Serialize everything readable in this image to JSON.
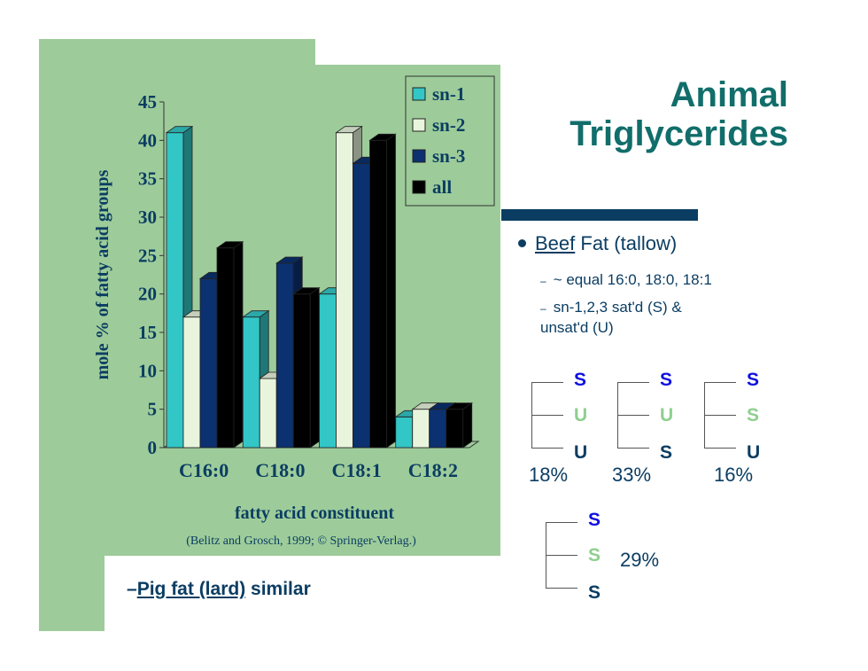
{
  "slide": {
    "title_line1": "Animal",
    "title_line2": "Triglycerides",
    "bullet_underlined": "Beef",
    "bullet_rest": " Fat (tallow)",
    "sub1": "~ equal 16:0, 18:0, 18:1",
    "sub2_line1": "sn-1,2,3 sat'd (S) &",
    "sub2_line2": "unsat'd (U)",
    "lard_dash": "–",
    "lard_underlined": "Pig fat (lard)",
    "lard_rest": " similar",
    "sub_dash": "–"
  },
  "triglycerides": [
    {
      "positions": [
        "S",
        "U",
        "U"
      ],
      "percent": "18%"
    },
    {
      "positions": [
        "S",
        "U",
        "S"
      ],
      "percent": "33%"
    },
    {
      "positions": [
        "S",
        "S",
        "U"
      ],
      "percent": "16%"
    },
    {
      "positions": [
        "S",
        "S",
        "S"
      ],
      "percent": "29%"
    }
  ],
  "colors": {
    "S_top": "#1010e0",
    "S_bottom": "#0b3d62",
    "U_mid": "#8fcf8f",
    "S_mid": "#8fcf8f",
    "U_bottom": "#0b3d62",
    "panel_bg": "#9dcc9a",
    "title": "#116e6a"
  },
  "chart_data": {
    "type": "bar",
    "categories": [
      "C16:0",
      "C18:0",
      "C18:1",
      "C18:2"
    ],
    "series": [
      {
        "name": "sn-1",
        "values": [
          41,
          17,
          20,
          4
        ],
        "color": "#33c6c6"
      },
      {
        "name": "sn-2",
        "values": [
          17,
          9,
          41,
          5
        ],
        "color": "#e8f5dc"
      },
      {
        "name": "sn-3",
        "values": [
          22,
          24,
          37,
          5
        ],
        "color": "#0b3170"
      },
      {
        "name": "all",
        "values": [
          26,
          20,
          40,
          5
        ],
        "color": "#000000"
      }
    ],
    "ylim": [
      0,
      45
    ],
    "yticks": [
      "0",
      "5",
      "10",
      "15",
      "20",
      "25",
      "30",
      "35",
      "40",
      "45"
    ],
    "ylabel": "mole % of fatty acid groups",
    "xlabel": "fatty acid constituent",
    "source": "(Belitz and Grosch, 1999; © Springer-Verlag.)",
    "legend": "top-right",
    "grid": false
  }
}
